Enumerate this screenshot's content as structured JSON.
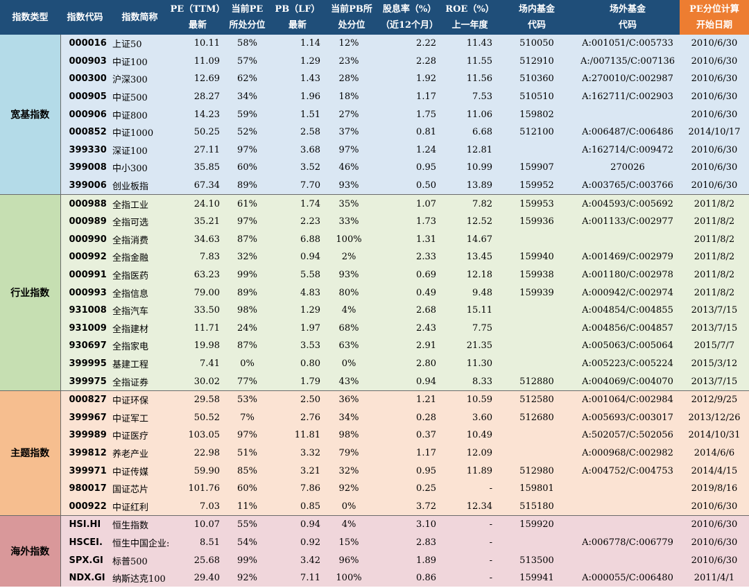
{
  "headers": [
    {
      "l1": "指数类型",
      "l2": ""
    },
    {
      "l1": "指数代码",
      "l2": ""
    },
    {
      "l1": "指数简称",
      "l2": ""
    },
    {
      "l1": "PE（TTM）",
      "l2": "最新"
    },
    {
      "l1": "当前PE",
      "l2": "所处分位"
    },
    {
      "l1": "PB（LF）",
      "l2": "最新"
    },
    {
      "l1": "当前PB所",
      "l2": "处分位"
    },
    {
      "l1": "股息率（%）",
      "l2": "（近12个月）"
    },
    {
      "l1": "ROE（%）",
      "l2": "上一年度"
    },
    {
      "l1": "场内基金",
      "l2": "代码"
    },
    {
      "l1": "场外基金",
      "l2": "代码"
    },
    {
      "l1": "PE分位计算",
      "l2": "开始日期"
    }
  ],
  "groups": [
    {
      "category": "宽基指数",
      "theme": "kuanji",
      "rows": [
        {
          "code": "000016",
          "name": "上证50",
          "pe": "10.11",
          "pe_pct": "58%",
          "pb": "1.14",
          "pb_pct": "12%",
          "div": "2.22",
          "roe": "11.43",
          "etf": "510050",
          "otc": "A:001051/C:005733",
          "start": "2010/6/30"
        },
        {
          "code": "000903",
          "name": "中证100",
          "pe": "11.09",
          "pe_pct": "57%",
          "pb": "1.29",
          "pb_pct": "23%",
          "div": "2.28",
          "roe": "11.55",
          "etf": "512910",
          "otc": "A:/007135/C:007136",
          "start": "2010/6/30"
        },
        {
          "code": "000300",
          "name": "沪深300",
          "pe": "12.69",
          "pe_pct": "62%",
          "pb": "1.43",
          "pb_pct": "28%",
          "div": "1.92",
          "roe": "11.56",
          "etf": "510360",
          "otc": "A:270010/C:002987",
          "start": "2010/6/30"
        },
        {
          "code": "000905",
          "name": "中证500",
          "pe": "28.27",
          "pe_pct": "34%",
          "pb": "1.96",
          "pb_pct": "18%",
          "div": "1.17",
          "roe": "7.53",
          "etf": "510510",
          "otc": "A:162711/C:002903",
          "start": "2010/6/30"
        },
        {
          "code": "000906",
          "name": "中证800",
          "pe": "14.23",
          "pe_pct": "59%",
          "pb": "1.51",
          "pb_pct": "27%",
          "div": "1.75",
          "roe": "11.06",
          "etf": "159802",
          "otc": "",
          "start": "2010/6/30"
        },
        {
          "code": "000852",
          "name": "中证1000",
          "pe": "50.25",
          "pe_pct": "52%",
          "pb": "2.58",
          "pb_pct": "37%",
          "div": "0.81",
          "roe": "6.68",
          "etf": "512100",
          "otc": "A:006487/C:006486",
          "start": "2014/10/17"
        },
        {
          "code": "399330",
          "name": "深证100",
          "pe": "27.11",
          "pe_pct": "97%",
          "pb": "3.68",
          "pb_pct": "97%",
          "div": "1.24",
          "roe": "12.81",
          "etf": "",
          "otc": "A:162714/C:009472",
          "start": "2010/6/30"
        },
        {
          "code": "399008",
          "name": "中小300",
          "pe": "35.85",
          "pe_pct": "60%",
          "pb": "3.52",
          "pb_pct": "46%",
          "div": "0.95",
          "roe": "10.99",
          "etf": "159907",
          "otc": "270026",
          "start": "2010/6/30"
        },
        {
          "code": "399006",
          "name": "创业板指",
          "pe": "67.34",
          "pe_pct": "89%",
          "pb": "7.70",
          "pb_pct": "93%",
          "div": "0.50",
          "roe": "13.89",
          "etf": "159952",
          "otc": "A:003765/C:003766",
          "start": "2010/6/30"
        }
      ]
    },
    {
      "category": "行业指数",
      "theme": "hangye",
      "rows": [
        {
          "code": "000988",
          "name": "全指工业",
          "pe": "24.10",
          "pe_pct": "61%",
          "pb": "1.74",
          "pb_pct": "35%",
          "div": "1.07",
          "roe": "7.82",
          "etf": "159953",
          "otc": "A:004593/C:005692",
          "start": "2011/8/2"
        },
        {
          "code": "000989",
          "name": "全指可选",
          "pe": "35.21",
          "pe_pct": "97%",
          "pb": "2.23",
          "pb_pct": "33%",
          "div": "1.73",
          "roe": "12.52",
          "etf": "159936",
          "otc": "A:001133/C:002977",
          "start": "2011/8/2"
        },
        {
          "code": "000990",
          "name": "全指消费",
          "pe": "34.63",
          "pe_pct": "87%",
          "pb": "6.88",
          "pb_pct": "100%",
          "div": "1.31",
          "roe": "14.67",
          "etf": "",
          "otc": "",
          "start": "2011/8/2"
        },
        {
          "code": "000992",
          "name": "全指金融",
          "pe": "7.83",
          "pe_pct": "32%",
          "pb": "0.94",
          "pb_pct": "2%",
          "div": "2.33",
          "roe": "13.45",
          "etf": "159940",
          "otc": "A:001469/C:002979",
          "start": "2011/8/2"
        },
        {
          "code": "000991",
          "name": "全指医药",
          "pe": "63.23",
          "pe_pct": "99%",
          "pb": "5.58",
          "pb_pct": "93%",
          "div": "0.69",
          "roe": "12.18",
          "etf": "159938",
          "otc": "A:001180/C:002978",
          "start": "2011/8/2"
        },
        {
          "code": "000993",
          "name": "全指信息",
          "pe": "79.00",
          "pe_pct": "89%",
          "pb": "4.83",
          "pb_pct": "80%",
          "div": "0.49",
          "roe": "9.48",
          "etf": "159939",
          "otc": "A:000942/C:002974",
          "start": "2011/8/2"
        },
        {
          "code": "931008",
          "name": "全指汽车",
          "pe": "33.50",
          "pe_pct": "98%",
          "pb": "1.29",
          "pb_pct": "4%",
          "div": "2.68",
          "roe": "15.11",
          "etf": "",
          "otc": "A:004854/C:004855",
          "start": "2013/7/15"
        },
        {
          "code": "931009",
          "name": "全指建材",
          "pe": "11.71",
          "pe_pct": "24%",
          "pb": "1.97",
          "pb_pct": "68%",
          "div": "2.43",
          "roe": "7.75",
          "etf": "",
          "otc": "A:004856/C:004857",
          "start": "2013/7/15"
        },
        {
          "code": "930697",
          "name": "全指家电",
          "pe": "19.98",
          "pe_pct": "87%",
          "pb": "3.53",
          "pb_pct": "63%",
          "div": "2.91",
          "roe": "21.35",
          "etf": "",
          "otc": "A:005063/C:005064",
          "start": "2015/7/7"
        },
        {
          "code": "399995",
          "name": "基建工程",
          "pe": "7.41",
          "pe_pct": "0%",
          "pb": "0.80",
          "pb_pct": "0%",
          "div": "2.80",
          "roe": "11.30",
          "etf": "",
          "otc": "A:005223/C:005224",
          "start": "2015/3/12"
        },
        {
          "code": "399975",
          "name": "全指证券",
          "pe": "30.02",
          "pe_pct": "77%",
          "pb": "1.79",
          "pb_pct": "43%",
          "div": "0.94",
          "roe": "8.33",
          "etf": "512880",
          "otc": "A:004069/C:004070",
          "start": "2013/7/15"
        }
      ]
    },
    {
      "category": "主题指数",
      "theme": "zhuti",
      "rows": [
        {
          "code": "000827",
          "name": "中证环保",
          "pe": "29.58",
          "pe_pct": "53%",
          "pb": "2.50",
          "pb_pct": "36%",
          "div": "1.21",
          "roe": "10.59",
          "etf": "512580",
          "otc": "A:001064/C:002984",
          "start": "2012/9/25"
        },
        {
          "code": "399967",
          "name": "中证军工",
          "pe": "50.52",
          "pe_pct": "7%",
          "pb": "2.76",
          "pb_pct": "34%",
          "div": "0.28",
          "roe": "3.60",
          "etf": "512680",
          "otc": "A:005693/C:003017",
          "start": "2013/12/26"
        },
        {
          "code": "399989",
          "name": "中证医疗",
          "pe": "103.05",
          "pe_pct": "97%",
          "pb": "11.81",
          "pb_pct": "98%",
          "div": "0.37",
          "roe": "10.49",
          "etf": "",
          "otc": "A:502057/C:502056",
          "start": "2014/10/31"
        },
        {
          "code": "399812",
          "name": "养老产业",
          "pe": "22.98",
          "pe_pct": "51%",
          "pb": "3.32",
          "pb_pct": "79%",
          "div": "1.17",
          "roe": "12.09",
          "etf": "",
          "otc": "A:000968/C:002982",
          "start": "2014/6/6"
        },
        {
          "code": "399971",
          "name": "中证传媒",
          "pe": "59.90",
          "pe_pct": "85%",
          "pb": "3.21",
          "pb_pct": "32%",
          "div": "0.95",
          "roe": "11.89",
          "etf": "512980",
          "otc": "A:004752/C:004753",
          "start": "2014/4/15"
        },
        {
          "code": "980017",
          "name": "国证芯片",
          "pe": "101.76",
          "pe_pct": "60%",
          "pb": "7.86",
          "pb_pct": "92%",
          "div": "0.25",
          "roe": "-",
          "etf": "159801",
          "otc": "",
          "start": "2019/8/16"
        },
        {
          "code": "000922",
          "name": "中证红利",
          "pe": "7.03",
          "pe_pct": "11%",
          "pb": "0.85",
          "pb_pct": "0%",
          "div": "3.72",
          "roe": "12.34",
          "etf": "515180",
          "otc": "",
          "start": "2010/6/30"
        }
      ]
    },
    {
      "category": "海外指数",
      "theme": "haiwai",
      "rows": [
        {
          "code": "HSI.HI",
          "name": "恒生指数",
          "pe": "10.07",
          "pe_pct": "55%",
          "pb": "0.94",
          "pb_pct": "4%",
          "div": "3.10",
          "roe": "-",
          "etf": "159920",
          "otc": "",
          "start": "2010/6/30"
        },
        {
          "code": "HSCEI.",
          "name": "恒生中国企业:",
          "pe": "8.51",
          "pe_pct": "54%",
          "pb": "0.92",
          "pb_pct": "15%",
          "div": "2.83",
          "roe": "-",
          "etf": "",
          "otc": "A:006778/C:006779",
          "start": "2010/6/30"
        },
        {
          "code": "SPX.GI",
          "name": "标普500",
          "pe": "25.68",
          "pe_pct": "99%",
          "pb": "3.42",
          "pb_pct": "96%",
          "div": "1.89",
          "roe": "-",
          "etf": "513500",
          "otc": "",
          "start": "2010/6/30"
        },
        {
          "code": "NDX.GI",
          "name": "纳斯达克100",
          "pe": "29.40",
          "pe_pct": "92%",
          "pb": "7.11",
          "pb_pct": "100%",
          "div": "0.86",
          "roe": "-",
          "etf": "159941",
          "otc": "A:000055/C:006480",
          "start": "2011/4/1"
        }
      ]
    }
  ]
}
